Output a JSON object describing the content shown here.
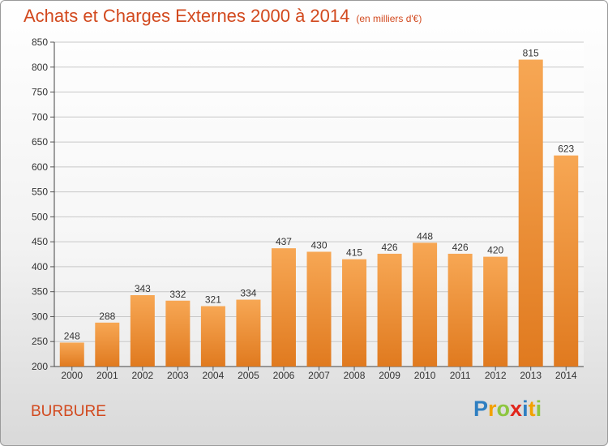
{
  "title": "Achats et Charges Externes 2000 à 2014",
  "subtitle": "(en milliers d'€)",
  "town": "BURBURE",
  "logo": {
    "letters": [
      "P",
      "r",
      "o",
      "x",
      "i",
      "t",
      "i"
    ],
    "colors": [
      "#2f7fc1",
      "#f2a100",
      "#8dc63f",
      "#e1261c",
      "#2f7fc1",
      "#f2a100",
      "#8dc63f"
    ]
  },
  "colors": {
    "bar_light": "#f7a754",
    "bar_dark": "#e07a1f",
    "title": "#d2491e"
  },
  "chart_data": {
    "type": "bar",
    "title": "Achats et Charges Externes 2000 à 2014",
    "subtitle": "(en milliers d'€)",
    "xlabel": "",
    "ylabel": "",
    "categories": [
      "2000",
      "2001",
      "2002",
      "2003",
      "2004",
      "2005",
      "2006",
      "2007",
      "2008",
      "2009",
      "2010",
      "2011",
      "2012",
      "2013",
      "2014"
    ],
    "values": [
      248,
      288,
      343,
      332,
      321,
      334,
      437,
      430,
      415,
      426,
      448,
      426,
      420,
      815,
      623
    ],
    "ylim": [
      200,
      850
    ],
    "yticks": [
      200,
      250,
      300,
      350,
      400,
      450,
      500,
      550,
      600,
      650,
      700,
      750,
      800,
      850
    ],
    "grid": true
  }
}
